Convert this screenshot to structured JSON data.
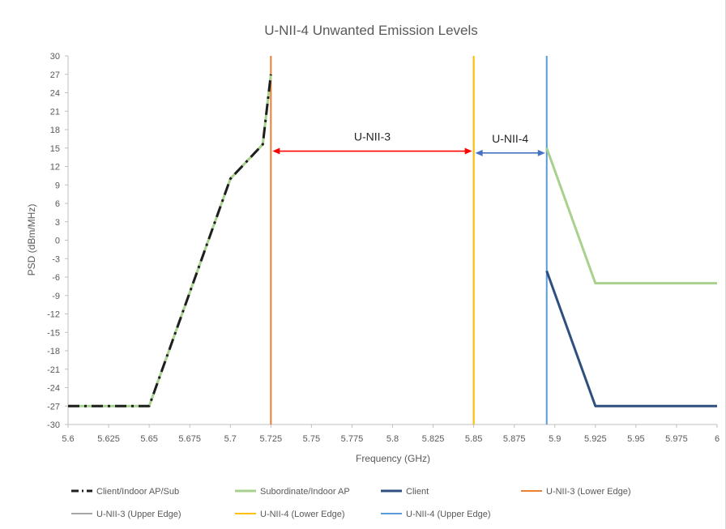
{
  "chart_data": {
    "type": "line",
    "title": "U-NII-4 Unwanted Emission Levels",
    "xlabel": "Frequency (GHz)",
    "ylabel": "PSD (dBm/MHz)",
    "xlim": [
      5.6,
      6.0
    ],
    "ylim": [
      -30,
      30
    ],
    "x_ticks": [
      "5.6",
      "5.625",
      "5.65",
      "5.675",
      "5.7",
      "5.725",
      "5.75",
      "5.775",
      "5.8",
      "5.825",
      "5.85",
      "5.875",
      "5.9",
      "5.925",
      "5.95",
      "5.975",
      "6"
    ],
    "y_ticks": [
      "30",
      "27",
      "24",
      "21",
      "18",
      "15",
      "12",
      "9",
      "6",
      "3",
      "0",
      "-3",
      "-6",
      "-9",
      "-12",
      "-15",
      "-18",
      "-21",
      "-24",
      "-27",
      "-30"
    ],
    "grid": false,
    "legend_position": "bottom",
    "series": [
      {
        "name": "Client/Indoor AP/Sub",
        "color": "#1f1f1f",
        "style": "dashdot",
        "points": [
          [
            5.6,
            -27
          ],
          [
            5.65,
            -27
          ],
          [
            5.7,
            10
          ],
          [
            5.72,
            15.6
          ],
          [
            5.725,
            27
          ]
        ]
      },
      {
        "name": "Subordinate/Indoor AP",
        "color": "#a9d18e",
        "style": "solid",
        "points": [
          [
            5.6,
            -27
          ],
          [
            5.65,
            -27
          ],
          [
            5.7,
            10
          ],
          [
            5.72,
            15.6
          ],
          [
            5.725,
            27
          ],
          null,
          [
            5.895,
            15
          ],
          [
            5.925,
            -7
          ],
          [
            6.0,
            -7
          ]
        ]
      },
      {
        "name": "Client",
        "color": "#2f4f7f",
        "style": "solid",
        "points": [
          [
            5.895,
            -5
          ],
          [
            5.925,
            -27
          ],
          [
            6.0,
            -27
          ]
        ]
      },
      {
        "name": "U-NII-3 (Lower Edge)",
        "color": "#ed7d31",
        "style": "vertical",
        "x": 5.725
      },
      {
        "name": "U-NII-3 (Upper Edge)",
        "color": "#a5a5a5",
        "style": "vertical",
        "x": 5.85
      },
      {
        "name": "U-NII-4 (Lower Edge)",
        "color": "#ffc000",
        "style": "vertical",
        "x": 5.85
      },
      {
        "name": "U-NII-4 (Upper Edge)",
        "color": "#5b9bd5",
        "style": "vertical",
        "x": 5.895
      }
    ],
    "annotations": [
      {
        "text": "U-NII-3",
        "x_from": 5.725,
        "x_to": 5.85,
        "y": 14.5,
        "color": "#ff0000"
      },
      {
        "text": "U-NII-4",
        "x_from": 5.85,
        "x_to": 5.895,
        "y": 14.2,
        "color": "#4472c4"
      }
    ]
  }
}
